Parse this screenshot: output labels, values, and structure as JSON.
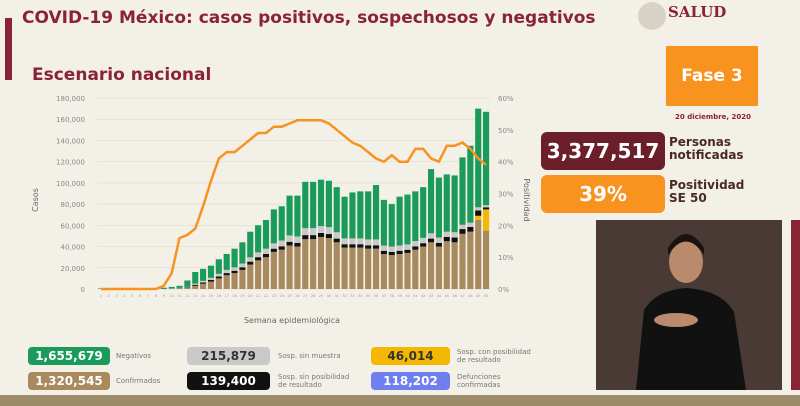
{
  "header": {
    "title": "COVID-19 México: casos positivos, sospechosos y negativos",
    "subtitle": "Escenario nacional",
    "brand": "SALUD"
  },
  "side": {
    "phase": "Fase 3",
    "date": "20 diciembre, 2020",
    "persons_value": "3,377,517",
    "persons_label_1": "Personas",
    "persons_label_2": "notificadas",
    "positivity_value": "39%",
    "positivity_label_1": "Positividad",
    "positivity_label_2": "SE 50"
  },
  "legend": [
    {
      "value": "1,655,679",
      "label": "Negativos",
      "color": "#1a9b5a"
    },
    {
      "value": "215,879",
      "label": "Sosp. sin muestra",
      "color": "#c9c9c9"
    },
    {
      "value": "46,014",
      "label": "Sosp. con posibilidad de resultado",
      "color": "#f5b800"
    },
    {
      "value": "1,320,545",
      "label": "Confirmados",
      "color": "#a88a5e"
    },
    {
      "value": "139,400",
      "label": "Sosp. sin posibilidad de resultado",
      "color": "#111111"
    },
    {
      "value": "118,202",
      "label": "Defunciones confirmadas",
      "color": "#6f7ff0"
    }
  ],
  "chart_data": {
    "type": "bar",
    "xlabel": "Semana epidemiológica",
    "ylabel": "Casos",
    "y2label": "Positividad",
    "ylim": [
      0,
      180000
    ],
    "y2lim": [
      0,
      60
    ],
    "yticks": [
      "0",
      "20,000",
      "40,000",
      "60,000",
      "80,000",
      "100,000",
      "120,000",
      "140,000",
      "160,000",
      "180,000"
    ],
    "y2ticks": [
      "0%",
      "10%",
      "20%",
      "30%",
      "40%",
      "50%",
      "60%"
    ],
    "weeks": [
      1,
      2,
      3,
      4,
      5,
      6,
      7,
      8,
      9,
      10,
      11,
      12,
      13,
      14,
      15,
      16,
      17,
      18,
      19,
      20,
      21,
      22,
      23,
      24,
      25,
      26,
      27,
      28,
      29,
      30,
      31,
      32,
      33,
      34,
      35,
      36,
      37,
      38,
      39,
      40,
      41,
      42,
      43,
      44,
      45,
      46,
      47,
      48,
      49,
      50
    ],
    "total": [
      500,
      800,
      1000,
      1000,
      1000,
      800,
      800,
      800,
      1200,
      2000,
      3000,
      8000,
      16000,
      19000,
      22000,
      28000,
      33000,
      38000,
      44000,
      54000,
      60000,
      65000,
      75000,
      78000,
      88000,
      88000,
      101000,
      101000,
      103000,
      102000,
      96000,
      87000,
      91000,
      92000,
      92000,
      98000,
      84000,
      80000,
      87000,
      89000,
      92000,
      96000,
      113000,
      105000,
      108000,
      107000,
      124000,
      135000,
      170000,
      167000
    ],
    "confirmados": [
      0,
      0,
      0,
      0,
      0,
      0,
      0,
      0,
      0,
      300,
      600,
      1000,
      3000,
      5000,
      7000,
      10000,
      13000,
      15000,
      18000,
      23000,
      27000,
      30000,
      35000,
      37000,
      41000,
      40000,
      47000,
      47000,
      49000,
      48000,
      44000,
      39000,
      39000,
      39000,
      38000,
      38000,
      33000,
      32000,
      33000,
      34000,
      37000,
      40000,
      44000,
      40000,
      45000,
      44000,
      52000,
      54000,
      65000,
      55000
    ],
    "sosp_sin_posibilidad": [
      0,
      0,
      0,
      0,
      0,
      0,
      0,
      0,
      0,
      100,
      200,
      500,
      1000,
      1200,
      1500,
      1800,
      2000,
      2200,
      2500,
      2800,
      3000,
      3000,
      3000,
      3200,
      3500,
      3500,
      3800,
      3800,
      3800,
      3800,
      3500,
      3200,
      3200,
      3200,
      3200,
      3200,
      3000,
      3000,
      3000,
      3000,
      3200,
      3200,
      3500,
      3500,
      4000,
      4500,
      4500,
      4500,
      5000,
      2000
    ],
    "sosp_sin_muestra": [
      0,
      0,
      0,
      0,
      0,
      0,
      0,
      0,
      0,
      200,
      300,
      500,
      1000,
      1500,
      2000,
      2500,
      3000,
      3200,
      3500,
      4000,
      4500,
      5000,
      5000,
      5500,
      6000,
      6000,
      6500,
      6500,
      6500,
      6500,
      6000,
      5500,
      5500,
      5500,
      5500,
      5500,
      5000,
      5000,
      5000,
      5000,
      5000,
      5000,
      5000,
      5000,
      5000,
      5000,
      4000,
      4000,
      3000,
      2000
    ],
    "sosp_con_posibilidad": [
      0,
      0,
      0,
      0,
      0,
      0,
      0,
      0,
      0,
      0,
      0,
      0,
      0,
      0,
      0,
      0,
      0,
      0,
      0,
      0,
      0,
      0,
      0,
      0,
      0,
      0,
      0,
      0,
      0,
      0,
      0,
      0,
      0,
      0,
      0,
      0,
      0,
      0,
      0,
      0,
      0,
      0,
      0,
      0,
      0,
      0,
      0,
      0,
      4000,
      20000
    ],
    "positividad": [
      0,
      0,
      0,
      0,
      0,
      0,
      0,
      0,
      1,
      5,
      16,
      17,
      19,
      26,
      34,
      41,
      43,
      43,
      45,
      47,
      49,
      49,
      51,
      51,
      52,
      53,
      53,
      53,
      53,
      52,
      50,
      48,
      46,
      45,
      43,
      41,
      40,
      42,
      40,
      40,
      44,
      44,
      41,
      40,
      45,
      45,
      46,
      44,
      41,
      39
    ]
  }
}
